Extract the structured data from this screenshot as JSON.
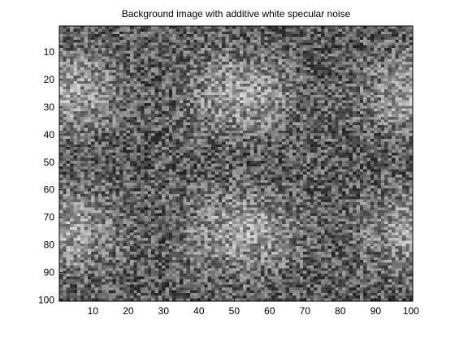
{
  "chart_data": {
    "type": "heatmap",
    "title": "Background image with additive white specular noise",
    "xlabel": "",
    "ylabel": "",
    "colormap": "gray",
    "matrix_size": [
      100,
      100
    ],
    "xlim": [
      0.5,
      100.5
    ],
    "ylim": [
      0.5,
      100.5
    ],
    "y_direction": "reverse",
    "x_ticks": [
      10,
      20,
      30,
      40,
      50,
      60,
      70,
      80,
      90,
      100
    ],
    "y_ticks": [
      10,
      20,
      30,
      40,
      50,
      60,
      70,
      80,
      90,
      100
    ],
    "x_tick_labels": [
      "10",
      "20",
      "30",
      "40",
      "50",
      "60",
      "70",
      "80",
      "90",
      "100"
    ],
    "y_tick_labels": [
      "10",
      "20",
      "30",
      "40",
      "50",
      "60",
      "70",
      "80",
      "90",
      "100"
    ],
    "background_period": [
      50,
      50
    ],
    "background_peaks": [
      {
        "x": 2,
        "y": 25
      },
      {
        "x": 52,
        "y": 25
      },
      {
        "x": 100,
        "y": 25
      },
      {
        "x": 2,
        "y": 75
      },
      {
        "x": 52,
        "y": 75
      },
      {
        "x": 100,
        "y": 75
      }
    ],
    "grid": false
  },
  "colors": {
    "background": "#ffffff",
    "axis": "#000000"
  }
}
